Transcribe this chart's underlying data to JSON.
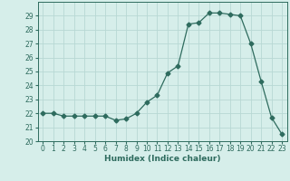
{
  "x": [
    0,
    1,
    2,
    3,
    4,
    5,
    6,
    7,
    8,
    9,
    10,
    11,
    12,
    13,
    14,
    15,
    16,
    17,
    18,
    19,
    20,
    21,
    22,
    23
  ],
  "y": [
    22,
    22,
    21.8,
    21.8,
    21.8,
    21.8,
    21.8,
    21.5,
    21.6,
    22,
    22.8,
    23.3,
    24.9,
    25.4,
    28.4,
    28.5,
    29.2,
    29.2,
    29.1,
    29.0,
    27.0,
    24.3,
    21.7,
    20.5
  ],
  "line_color": "#2e6b5e",
  "marker": "D",
  "marker_size": 2.5,
  "bg_color": "#d6eeea",
  "grid_color": "#b8d8d4",
  "xlabel": "Humidex (Indice chaleur)",
  "xlim": [
    -0.5,
    23.5
  ],
  "ylim": [
    20,
    30
  ],
  "yticks": [
    20,
    21,
    22,
    23,
    24,
    25,
    26,
    27,
    28,
    29
  ],
  "xticks": [
    0,
    1,
    2,
    3,
    4,
    5,
    6,
    7,
    8,
    9,
    10,
    11,
    12,
    13,
    14,
    15,
    16,
    17,
    18,
    19,
    20,
    21,
    22,
    23
  ],
  "tick_fontsize": 5.5,
  "label_fontsize": 6.5
}
